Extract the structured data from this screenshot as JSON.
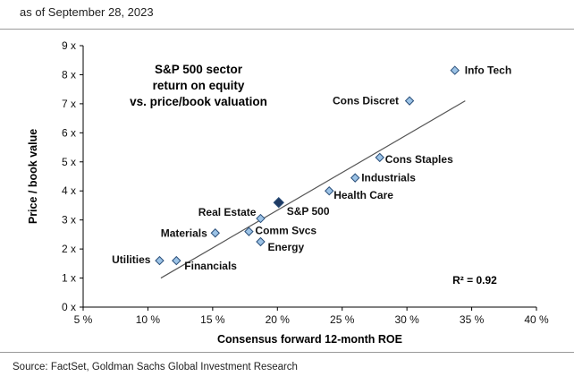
{
  "header": {
    "date_note": "as of September 28, 2023"
  },
  "footer": {
    "source": "Source: FactSet, Goldman Sachs Global Investment Research"
  },
  "chart_data": {
    "type": "scatter",
    "title_lines": [
      "S&P 500 sector",
      "return on equity",
      "vs. price/book valuation"
    ],
    "xlabel": "Consensus forward 12-month ROE",
    "ylabel": "Price / book value",
    "xlim": [
      5,
      40
    ],
    "ylim": [
      0,
      9
    ],
    "x_ticks": [
      5,
      10,
      15,
      20,
      25,
      30,
      35,
      40
    ],
    "y_ticks": [
      0,
      1,
      2,
      3,
      4,
      5,
      6,
      7,
      8,
      9
    ],
    "x_tick_labels": [
      "5 %",
      "10 %",
      "15 %",
      "20 %",
      "25 %",
      "30 %",
      "35 %",
      "40 %"
    ],
    "y_tick_labels": [
      "0 x",
      "1 x",
      "2 x",
      "3 x",
      "4 x",
      "5 x",
      "6 x",
      "7 x",
      "8 x",
      "9 x"
    ],
    "grid": false,
    "annotation": "R² = 0.92",
    "points": [
      {
        "label": "Info Tech",
        "x": 33.7,
        "y": 8.15,
        "highlight": false
      },
      {
        "label": "Cons Discret",
        "x": 30.2,
        "y": 7.1,
        "highlight": false
      },
      {
        "label": "Cons Staples",
        "x": 27.9,
        "y": 5.15,
        "highlight": false
      },
      {
        "label": "Industrials",
        "x": 26.0,
        "y": 4.45,
        "highlight": false
      },
      {
        "label": "Health Care",
        "x": 24.0,
        "y": 4.0,
        "highlight": false
      },
      {
        "label": "S&P 500",
        "x": 20.1,
        "y": 3.6,
        "highlight": true
      },
      {
        "label": "Real Estate",
        "x": 18.7,
        "y": 3.05,
        "highlight": false
      },
      {
        "label": "Comm Svcs",
        "x": 17.8,
        "y": 2.6,
        "highlight": false
      },
      {
        "label": "Energy",
        "x": 18.7,
        "y": 2.25,
        "highlight": false
      },
      {
        "label": "Materials",
        "x": 15.2,
        "y": 2.55,
        "highlight": false
      },
      {
        "label": "Utilities",
        "x": 10.9,
        "y": 1.6,
        "highlight": false
      },
      {
        "label": "Financials",
        "x": 12.2,
        "y": 1.6,
        "highlight": false
      }
    ],
    "trendline": {
      "x": [
        11.0,
        34.5
      ],
      "y": [
        1.0,
        7.1
      ]
    },
    "colors": {
      "marker_fill": "#9cc3e6",
      "marker_stroke": "#2a4f7a",
      "highlight_fill": "#1f3a63",
      "trendline": "#555555"
    }
  }
}
